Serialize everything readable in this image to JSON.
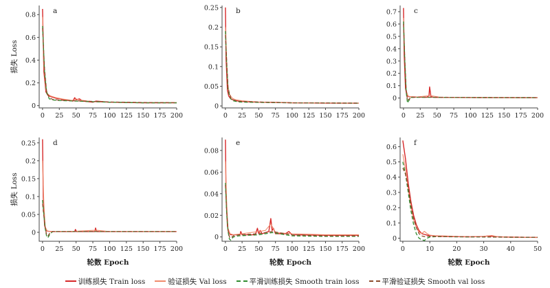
{
  "colors": {
    "train": "#d62728",
    "val": "#f08a6b",
    "smooth_train": "#2e8b2e",
    "smooth_val": "#8b4a2b",
    "axis": "#444444"
  },
  "chart_data": [
    {
      "type": "line",
      "panel": "a",
      "title": "",
      "xlabel": "",
      "ylabel": "损失 Loss",
      "xlim": [
        -5,
        200
      ],
      "ylim": [
        -0.02,
        0.88
      ],
      "xticks": [
        0,
        25,
        50,
        75,
        100,
        125,
        150,
        175,
        200
      ],
      "yticks": [
        0,
        0.2,
        0.4,
        0.6,
        0.8
      ],
      "series": [
        {
          "name": "训练损失 Train loss",
          "x": [
            0,
            2,
            5,
            8,
            12,
            20,
            30,
            45,
            48,
            50,
            55,
            60,
            75,
            80,
            100,
            150,
            200
          ],
          "y": [
            0.85,
            0.3,
            0.12,
            0.09,
            0.08,
            0.065,
            0.055,
            0.04,
            0.07,
            0.05,
            0.06,
            0.04,
            0.03,
            0.04,
            0.03,
            0.025,
            0.025
          ]
        },
        {
          "name": "验证损失 Val loss",
          "x": [
            0,
            2,
            5,
            8,
            12,
            20,
            30,
            45,
            50,
            55,
            75,
            100,
            150,
            200
          ],
          "y": [
            0.78,
            0.35,
            0.14,
            0.1,
            0.085,
            0.07,
            0.058,
            0.045,
            0.06,
            0.05,
            0.035,
            0.03,
            0.028,
            0.027
          ]
        },
        {
          "name": "平滑训练损失 Smooth train loss",
          "x": [
            0,
            3,
            6,
            10,
            15,
            25,
            50,
            100,
            150,
            200
          ],
          "y": [
            0.7,
            0.3,
            0.12,
            0.06,
            0.05,
            0.045,
            0.04,
            0.03,
            0.025,
            0.025
          ]
        },
        {
          "name": "平滑验证损失 Smooth val loss",
          "x": [
            0,
            3,
            6,
            10,
            15,
            25,
            50,
            100,
            150,
            200
          ],
          "y": [
            0.68,
            0.32,
            0.13,
            0.07,
            0.055,
            0.048,
            0.042,
            0.032,
            0.027,
            0.026
          ]
        }
      ]
    },
    {
      "type": "line",
      "panel": "b",
      "title": "",
      "xlabel": "",
      "ylabel": "",
      "xlim": [
        -5,
        200
      ],
      "ylim": [
        -0.005,
        0.255
      ],
      "xticks": [
        0,
        25,
        50,
        75,
        100,
        125,
        150,
        175,
        200
      ],
      "yticks": [
        0,
        0.05,
        0.1,
        0.15,
        0.2,
        0.25
      ],
      "series": [
        {
          "name": "训练损失 Train loss",
          "x": [
            0,
            1,
            3,
            5,
            8,
            12,
            20,
            40,
            75,
            100,
            150,
            200
          ],
          "y": [
            0.25,
            0.12,
            0.04,
            0.025,
            0.018,
            0.015,
            0.012,
            0.01,
            0.009,
            0.008,
            0.007,
            0.007
          ]
        },
        {
          "name": "验证损失 Val loss",
          "x": [
            0,
            2,
            4,
            6,
            10,
            15,
            25,
            50,
            100,
            200
          ],
          "y": [
            0.2,
            0.11,
            0.05,
            0.03,
            0.02,
            0.016,
            0.013,
            0.01,
            0.008,
            0.007
          ]
        },
        {
          "name": "平滑训练损失 Smooth train loss",
          "x": [
            0,
            2,
            4,
            8,
            12,
            20,
            50,
            100,
            200
          ],
          "y": [
            0.19,
            0.1,
            0.04,
            0.018,
            0.013,
            0.01,
            0.009,
            0.008,
            0.007
          ]
        },
        {
          "name": "平滑验证损失 Smooth val loss",
          "x": [
            0,
            2,
            4,
            8,
            12,
            20,
            50,
            100,
            200
          ],
          "y": [
            0.18,
            0.11,
            0.045,
            0.02,
            0.015,
            0.012,
            0.01,
            0.008,
            0.007
          ]
        }
      ]
    },
    {
      "type": "line",
      "panel": "c",
      "title": "",
      "xlabel": "",
      "ylabel": "",
      "xlim": [
        -5,
        200
      ],
      "ylim": [
        -0.08,
        0.75
      ],
      "xticks": [
        0,
        25,
        50,
        75,
        100,
        125,
        150,
        175,
        200
      ],
      "yticks": [
        0,
        0.1,
        0.2,
        0.3,
        0.4,
        0.5,
        0.6,
        0.7
      ],
      "series": [
        {
          "name": "训练损失 Train loss",
          "x": [
            0,
            1,
            3,
            5,
            8,
            12,
            20,
            35,
            38,
            39,
            41,
            45,
            55,
            100,
            200
          ],
          "y": [
            0.73,
            0.35,
            0.08,
            0.02,
            0.01,
            0.01,
            0.008,
            0.006,
            0.02,
            0.09,
            0.01,
            0.006,
            0.005,
            0.004,
            0.003
          ]
        },
        {
          "name": "验证损失 Val loss",
          "x": [
            0,
            2,
            4,
            7,
            12,
            20,
            40,
            55,
            100,
            200
          ],
          "y": [
            0.65,
            0.3,
            0.06,
            0.015,
            0.01,
            0.008,
            0.02,
            0.006,
            0.004,
            0.003
          ]
        },
        {
          "name": "平滑训练损失 Smooth train loss",
          "x": [
            0,
            2,
            4,
            6,
            8,
            12,
            20,
            40,
            100,
            200
          ],
          "y": [
            0.62,
            0.3,
            0.05,
            -0.04,
            -0.02,
            0.005,
            0.006,
            0.006,
            0.004,
            0.003
          ]
        },
        {
          "name": "平滑验证损失 Smooth val loss",
          "x": [
            0,
            2,
            4,
            6,
            8,
            12,
            20,
            40,
            100,
            200
          ],
          "y": [
            0.6,
            0.32,
            0.07,
            -0.02,
            -0.01,
            0.006,
            0.007,
            0.007,
            0.004,
            0.003
          ]
        }
      ]
    },
    {
      "type": "line",
      "panel": "d",
      "title": "",
      "xlabel": "轮数 Epoch",
      "ylabel": "损失 Loss",
      "xlim": [
        -5,
        200
      ],
      "ylim": [
        -0.025,
        0.265
      ],
      "xticks": [
        0,
        25,
        50,
        75,
        100,
        125,
        150,
        175,
        200
      ],
      "yticks": [
        0,
        0.05,
        0.1,
        0.15,
        0.2,
        0.25
      ],
      "series": [
        {
          "name": "训练损失 Train loss",
          "x": [
            0,
            1,
            3,
            5,
            8,
            15,
            48,
            49,
            50,
            51,
            78,
            79,
            80,
            81,
            100,
            200
          ],
          "y": [
            0.26,
            0.1,
            0.02,
            0.005,
            0.003,
            0.002,
            0.002,
            0.008,
            0.004,
            0.002,
            0.002,
            0.012,
            0.006,
            0.002,
            0.002,
            0.002
          ]
        },
        {
          "name": "验证损失 Val loss",
          "x": [
            0,
            2,
            4,
            7,
            12,
            50,
            80,
            100,
            200
          ],
          "y": [
            0.2,
            0.08,
            0.015,
            0.004,
            0.002,
            0.003,
            0.006,
            0.002,
            0.002
          ]
        },
        {
          "name": "平滑训练损失 Smooth train loss",
          "x": [
            0,
            2,
            4,
            6,
            8,
            11,
            15,
            50,
            100,
            200
          ],
          "y": [
            0.09,
            0.05,
            0.01,
            -0.01,
            -0.015,
            -0.005,
            0.002,
            0.002,
            0.002,
            0.002
          ]
        },
        {
          "name": "平滑验证损失 Smooth val loss",
          "x": [
            0,
            2,
            4,
            6,
            8,
            11,
            15,
            50,
            100,
            200
          ],
          "y": [
            0.08,
            0.045,
            0.012,
            -0.006,
            -0.01,
            -0.002,
            0.002,
            0.002,
            0.002,
            0.002
          ]
        }
      ]
    },
    {
      "type": "line",
      "panel": "e",
      "title": "",
      "xlabel": "轮数 Epoch",
      "ylabel": "",
      "xlim": [
        -5,
        200
      ],
      "ylim": [
        -0.004,
        0.092
      ],
      "xticks": [
        0,
        25,
        50,
        75,
        100,
        125,
        150,
        175,
        200
      ],
      "yticks": [
        0,
        0.02,
        0.04,
        0.06,
        0.08
      ],
      "series": [
        {
          "name": "训练损失 Train loss",
          "x": [
            0,
            1,
            3,
            5,
            8,
            15,
            22,
            23,
            25,
            45,
            48,
            50,
            52,
            55,
            60,
            65,
            68,
            70,
            72,
            75,
            90,
            95,
            100,
            150,
            200
          ],
          "y": [
            0.09,
            0.04,
            0.01,
            0.004,
            0.002,
            0.002,
            0.002,
            0.005,
            0.002,
            0.002,
            0.008,
            0.003,
            0.006,
            0.003,
            0.004,
            0.005,
            0.017,
            0.006,
            0.008,
            0.003,
            0.003,
            0.005,
            0.002,
            0.0015,
            0.0015
          ]
        },
        {
          "name": "验证损失 Val loss",
          "x": [
            0,
            2,
            4,
            7,
            12,
            25,
            50,
            60,
            68,
            75,
            100,
            150,
            200
          ],
          "y": [
            0.07,
            0.03,
            0.008,
            0.003,
            0.002,
            0.003,
            0.005,
            0.006,
            0.012,
            0.004,
            0.003,
            0.002,
            0.002
          ]
        },
        {
          "name": "平滑训练损失 Smooth train loss",
          "x": [
            0,
            2,
            4,
            6,
            8,
            12,
            20,
            50,
            70,
            100,
            150,
            200
          ],
          "y": [
            0.05,
            0.02,
            0.005,
            -0.002,
            -0.003,
            0.0,
            0.001,
            0.002,
            0.004,
            0.001,
            0.0005,
            0.0005
          ]
        },
        {
          "name": "平滑验证损失 Smooth val loss",
          "x": [
            0,
            2,
            4,
            6,
            8,
            12,
            20,
            50,
            70,
            100,
            150,
            200
          ],
          "y": [
            0.048,
            0.022,
            0.006,
            0.0,
            -0.001,
            0.001,
            0.002,
            0.003,
            0.005,
            0.002,
            0.001,
            0.001
          ]
        }
      ]
    },
    {
      "type": "line",
      "panel": "f",
      "title": "",
      "xlabel": "轮数 Epoch",
      "ylabel": "",
      "xlim": [
        -1,
        50
      ],
      "ylim": [
        -0.02,
        0.66
      ],
      "xticks": [
        0,
        10,
        20,
        30,
        40,
        50
      ],
      "yticks": [
        0,
        0.1,
        0.2,
        0.3,
        0.4,
        0.5,
        0.6
      ],
      "series": [
        {
          "name": "训练损失 Train loss",
          "x": [
            0,
            1,
            2,
            3,
            4,
            5,
            6,
            7,
            8,
            9,
            10,
            12,
            15,
            20,
            25,
            30,
            32,
            34,
            40,
            45,
            50
          ],
          "y": [
            0.64,
            0.52,
            0.36,
            0.24,
            0.15,
            0.09,
            0.05,
            0.03,
            0.025,
            0.02,
            0.018,
            0.015,
            0.012,
            0.01,
            0.009,
            0.012,
            0.015,
            0.01,
            0.007,
            0.006,
            0.005
          ]
        },
        {
          "name": "验证损失 Val loss",
          "x": [
            0,
            1,
            2,
            3,
            4,
            5,
            6,
            7,
            8,
            9,
            10,
            12,
            15,
            20,
            25,
            30,
            33,
            35,
            40,
            50
          ],
          "y": [
            0.55,
            0.45,
            0.32,
            0.2,
            0.12,
            0.07,
            0.04,
            0.03,
            0.045,
            0.03,
            0.02,
            0.016,
            0.015,
            0.012,
            0.01,
            0.012,
            0.018,
            0.01,
            0.008,
            0.006
          ]
        },
        {
          "name": "平滑训练损失 Smooth train loss",
          "x": [
            0,
            1,
            2,
            3,
            4,
            5,
            6,
            7,
            8,
            9,
            10,
            12,
            15,
            20,
            30,
            40,
            50
          ],
          "y": [
            0.5,
            0.42,
            0.3,
            0.18,
            0.09,
            0.03,
            0.0,
            -0.01,
            -0.015,
            0.0,
            0.008,
            0.01,
            0.01,
            0.009,
            0.008,
            0.006,
            0.005
          ]
        },
        {
          "name": "平滑验证损失 Smooth val loss",
          "x": [
            0,
            1,
            2,
            3,
            4,
            5,
            6,
            7,
            8,
            9,
            10,
            12,
            15,
            20,
            30,
            40,
            50
          ],
          "y": [
            0.46,
            0.42,
            0.33,
            0.22,
            0.13,
            0.07,
            0.03,
            0.015,
            0.01,
            0.012,
            0.012,
            0.012,
            0.011,
            0.01,
            0.009,
            0.007,
            0.006
          ]
        }
      ]
    }
  ],
  "legend": {
    "items": [
      {
        "label": "训练损失 Train loss",
        "key": "train"
      },
      {
        "label": "验证损失 Val loss",
        "key": "val"
      },
      {
        "label": "平滑训练损失 Smooth train loss",
        "key": "smooth_train"
      },
      {
        "label": "平滑验证损失 Smooth val loss",
        "key": "smooth_val"
      }
    ]
  }
}
